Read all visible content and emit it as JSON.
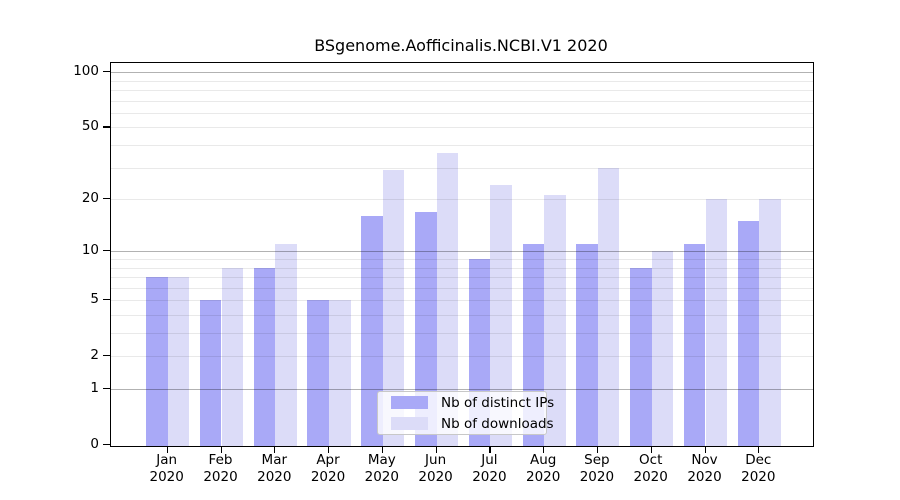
{
  "chart_data": {
    "type": "bar",
    "title": "BSgenome.Aofficinalis.NCBI.V1 2020",
    "year": "2020",
    "categories": [
      "Jan",
      "Feb",
      "Mar",
      "Apr",
      "May",
      "Jun",
      "Jul",
      "Aug",
      "Sep",
      "Oct",
      "Nov",
      "Dec"
    ],
    "series": [
      {
        "name": "Nb of distinct IPs",
        "color": "#a9a9f7",
        "values": [
          7,
          5,
          8,
          5,
          16,
          17,
          9,
          11,
          11,
          8,
          11,
          15
        ]
      },
      {
        "name": "Nb of downloads",
        "color": "#dcdcf8",
        "values": [
          7,
          8,
          11,
          5,
          29,
          36,
          24,
          21,
          30,
          10,
          20,
          20
        ]
      }
    ],
    "yscale": "log10(1+x)",
    "yticks": [
      0,
      1,
      2,
      5,
      10,
      20,
      50,
      100
    ],
    "major_gridlines": [
      1,
      10,
      100
    ],
    "minor_gridlines": [
      2,
      3,
      4,
      5,
      6,
      7,
      8,
      9,
      20,
      30,
      40,
      50,
      60,
      70,
      80,
      90
    ],
    "ylim": [
      0,
      112
    ],
    "xlabel": "",
    "ylabel": "",
    "legend_position": "inside-bottom-center",
    "frame_color": "#000000",
    "major_grid_color": "#b5b5b5",
    "minor_grid_color": "#ebebeb"
  }
}
